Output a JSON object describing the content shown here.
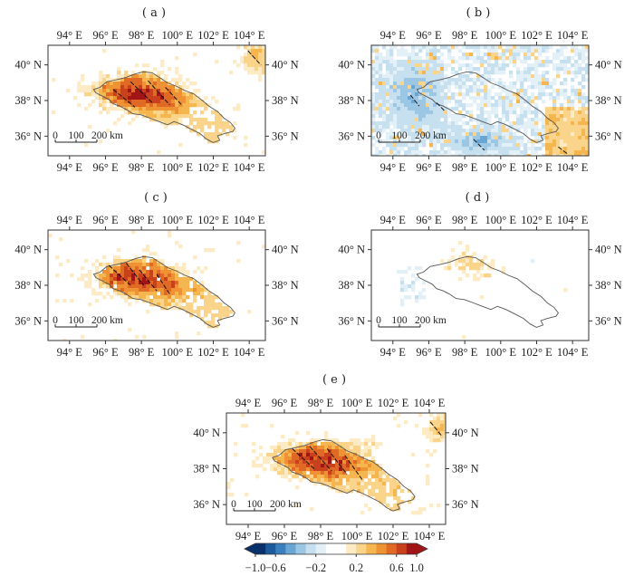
{
  "panels": [
    {
      "label": "( a )",
      "pattern": "a"
    },
    {
      "label": "( b )",
      "pattern": "b"
    },
    {
      "label": "( c )",
      "pattern": "c"
    },
    {
      "label": "( d )",
      "pattern": "d"
    },
    {
      "label": "( e )",
      "pattern": "e"
    }
  ],
  "axes": {
    "lon_ticks": [
      "94° E",
      "96° E",
      "98° E",
      "100° E",
      "102° E",
      "104° E"
    ],
    "lat_ticks": [
      "40° N",
      "38° N",
      "36° N"
    ],
    "lon_range": [
      92.8,
      104.9
    ],
    "lat_range": [
      34.9,
      41.1
    ]
  },
  "scale_bar": {
    "labels": [
      "0",
      "100",
      "200 km"
    ]
  },
  "colorbar": {
    "tick_labels": [
      "−1.0",
      "−0.6",
      "−0.2",
      "0.2",
      "0.6",
      "1.0"
    ],
    "colors": [
      "#08306b",
      "#1c5a9e",
      "#3b7fbf",
      "#6aa6d4",
      "#9cc7e4",
      "#c6e0f0",
      "#e3f0f8",
      "#ffffff",
      "#ffffff",
      "#fcebc4",
      "#f9d48a",
      "#f5b54f",
      "#ee9233",
      "#e06a25",
      "#c9401c",
      "#a11518"
    ]
  }
}
